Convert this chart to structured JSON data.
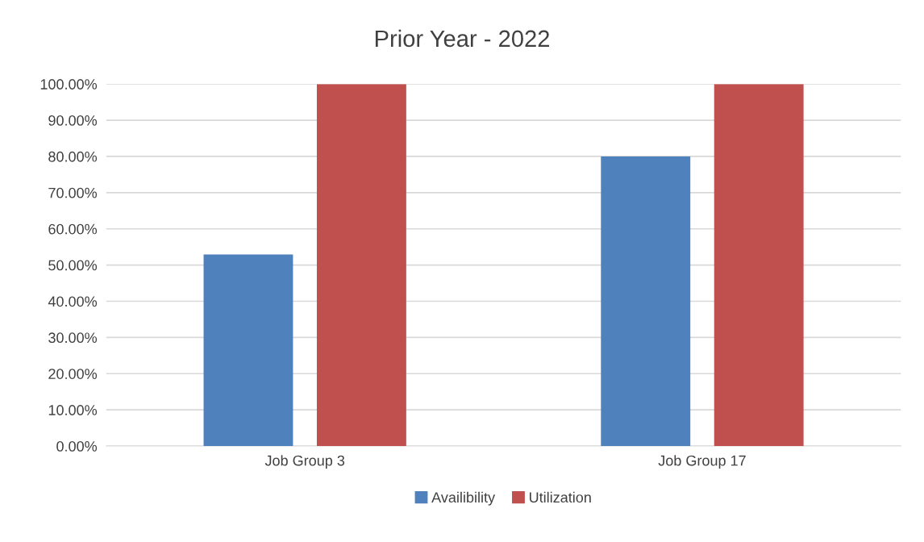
{
  "chart_data": {
    "type": "bar",
    "title": "Prior Year - 2022",
    "categories": [
      "Job Group 3",
      "Job Group 17"
    ],
    "series": [
      {
        "name": "Availibility",
        "color": "#4f81bd",
        "values": [
          52.9,
          80
        ]
      },
      {
        "name": "Utilization",
        "color": "#c0504d",
        "values": [
          100,
          100
        ]
      }
    ],
    "ylim": [
      0,
      100
    ],
    "yticks": [
      {
        "value": 0,
        "label": "0.00%"
      },
      {
        "value": 10,
        "label": "10.00%"
      },
      {
        "value": 20,
        "label": "20.00%"
      },
      {
        "value": 30,
        "label": "30.00%"
      },
      {
        "value": 40,
        "label": "40.00%"
      },
      {
        "value": 50,
        "label": "50.00%"
      },
      {
        "value": 60,
        "label": "60.00%"
      },
      {
        "value": 70,
        "label": "70.00%"
      },
      {
        "value": 80,
        "label": "80.00%"
      },
      {
        "value": 90,
        "label": "90.00%"
      },
      {
        "value": 100,
        "label": "100.00%"
      }
    ],
    "grid": "y",
    "legend": "bottom"
  }
}
